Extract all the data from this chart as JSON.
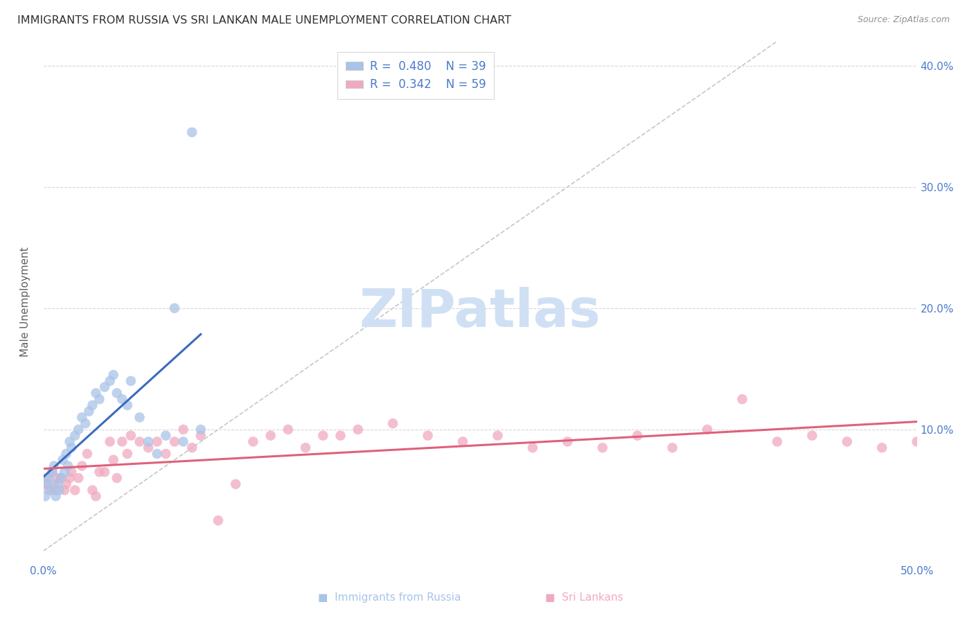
{
  "title": "IMMIGRANTS FROM RUSSIA VS SRI LANKAN MALE UNEMPLOYMENT CORRELATION CHART",
  "source": "Source: ZipAtlas.com",
  "ylabel": "Male Unemployment",
  "xlim": [
    0.0,
    0.5
  ],
  "ylim": [
    -0.01,
    0.42
  ],
  "ytick_labels_right": [
    "10.0%",
    "20.0%",
    "30.0%",
    "40.0%"
  ],
  "yticks_right": [
    0.1,
    0.2,
    0.3,
    0.4
  ],
  "russia_color": "#a8c4e8",
  "russia_line_color": "#3a6abf",
  "srilanka_color": "#f0aabf",
  "srilanka_line_color": "#e0607a",
  "ref_line_color": "#c0c0c0",
  "grid_color": "#d8d8d8",
  "axis_label_color": "#4a7acc",
  "tick_text_color": "#4a7acc",
  "ylabel_color": "#606060",
  "title_color": "#303030",
  "source_color": "#909090",
  "watermark": "ZIPatlas",
  "watermark_color": "#d0e0f4",
  "background_color": "#ffffff",
  "title_fontsize": 11.5,
  "source_fontsize": 9,
  "russia_x": [
    0.001,
    0.002,
    0.003,
    0.004,
    0.005,
    0.006,
    0.007,
    0.008,
    0.009,
    0.01,
    0.011,
    0.012,
    0.013,
    0.014,
    0.015,
    0.016,
    0.018,
    0.02,
    0.022,
    0.024,
    0.026,
    0.028,
    0.03,
    0.032,
    0.035,
    0.038,
    0.04,
    0.042,
    0.045,
    0.048,
    0.05,
    0.055,
    0.06,
    0.065,
    0.07,
    0.075,
    0.08,
    0.085,
    0.09
  ],
  "russia_y": [
    0.045,
    0.055,
    0.06,
    0.05,
    0.065,
    0.07,
    0.045,
    0.055,
    0.05,
    0.06,
    0.075,
    0.065,
    0.08,
    0.07,
    0.09,
    0.085,
    0.095,
    0.1,
    0.11,
    0.105,
    0.115,
    0.12,
    0.13,
    0.125,
    0.135,
    0.14,
    0.145,
    0.13,
    0.125,
    0.12,
    0.14,
    0.11,
    0.09,
    0.08,
    0.095,
    0.2,
    0.09,
    0.345,
    0.1
  ],
  "srilanka_x": [
    0.001,
    0.002,
    0.003,
    0.005,
    0.006,
    0.007,
    0.008,
    0.01,
    0.012,
    0.013,
    0.015,
    0.016,
    0.018,
    0.02,
    0.022,
    0.025,
    0.028,
    0.03,
    0.032,
    0.035,
    0.038,
    0.04,
    0.042,
    0.045,
    0.048,
    0.05,
    0.055,
    0.06,
    0.065,
    0.07,
    0.075,
    0.08,
    0.085,
    0.09,
    0.1,
    0.11,
    0.12,
    0.13,
    0.14,
    0.15,
    0.16,
    0.17,
    0.18,
    0.2,
    0.22,
    0.24,
    0.26,
    0.28,
    0.3,
    0.32,
    0.34,
    0.36,
    0.38,
    0.4,
    0.42,
    0.44,
    0.46,
    0.48,
    0.5
  ],
  "srilanka_y": [
    0.055,
    0.06,
    0.05,
    0.065,
    0.055,
    0.05,
    0.06,
    0.06,
    0.05,
    0.055,
    0.06,
    0.065,
    0.05,
    0.06,
    0.07,
    0.08,
    0.05,
    0.045,
    0.065,
    0.065,
    0.09,
    0.075,
    0.06,
    0.09,
    0.08,
    0.095,
    0.09,
    0.085,
    0.09,
    0.08,
    0.09,
    0.1,
    0.085,
    0.095,
    0.025,
    0.055,
    0.09,
    0.095,
    0.1,
    0.085,
    0.095,
    0.095,
    0.1,
    0.105,
    0.095,
    0.09,
    0.095,
    0.085,
    0.09,
    0.085,
    0.095,
    0.085,
    0.1,
    0.125,
    0.09,
    0.095,
    0.09,
    0.085,
    0.09
  ]
}
